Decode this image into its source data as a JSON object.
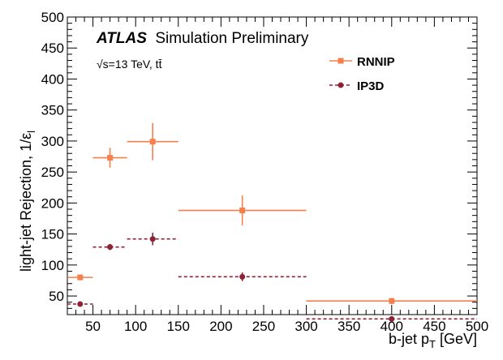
{
  "chart_data": {
    "type": "scatter",
    "title": "",
    "xlabel": "b-jet p_T [GeV]",
    "ylabel": "light-jet Rejection, 1/ε_l",
    "xlim": [
      20,
      500
    ],
    "ylim": [
      20,
      500
    ],
    "xticks": [
      50,
      100,
      150,
      200,
      250,
      300,
      350,
      400,
      450,
      500
    ],
    "yticks": [
      50,
      100,
      150,
      200,
      250,
      300,
      350,
      400,
      450,
      500
    ],
    "grid": false,
    "legend_position": "top-right",
    "experiment": "ATLAS",
    "experiment_suffix": "Simulation Preliminary",
    "energy_label": "√s=13 TeV, tt̄",
    "colors": {
      "RNNIP": "#f5804d",
      "IP3D": "#8b2235"
    },
    "series": [
      {
        "name": "RNNIP",
        "marker": "square",
        "line": "solid",
        "x": [
          35,
          70,
          120,
          225,
          400
        ],
        "x_low": [
          20,
          50,
          90,
          150,
          300
        ],
        "x_high": [
          50,
          90,
          150,
          300,
          500
        ],
        "y": [
          80,
          273,
          299,
          188,
          42
        ],
        "y_err": [
          1,
          16,
          30,
          24,
          5
        ]
      },
      {
        "name": "IP3D",
        "marker": "circle",
        "line": "dashed",
        "x": [
          35,
          70,
          120,
          225,
          400
        ],
        "x_low": [
          20,
          50,
          90,
          150,
          300
        ],
        "x_high": [
          50,
          90,
          150,
          300,
          500
        ],
        "y": [
          37,
          129,
          142,
          81,
          13
        ],
        "y_err": [
          1,
          5,
          10,
          7,
          1
        ]
      }
    ]
  }
}
